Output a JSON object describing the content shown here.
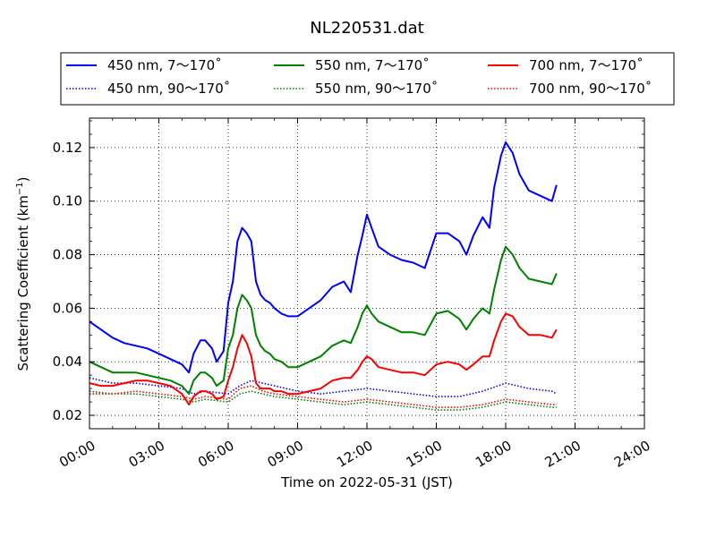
{
  "chart_data": {
    "type": "line",
    "title": "NL220531.dat",
    "xlabel": "Time on 2022-05-31 (JST)",
    "ylabel": "Scattering Coefficient (km",
    "ylabel_sup": "−1",
    "ylabel_close": ")",
    "xlim": [
      0,
      24
    ],
    "ylim": [
      0.015,
      0.131
    ],
    "x_unit": "hours",
    "x_ticks": [
      0,
      3,
      6,
      9,
      12,
      15,
      18,
      21,
      24
    ],
    "x_tick_labels": [
      "00:00",
      "03:00",
      "06:00",
      "09:00",
      "12:00",
      "15:00",
      "18:00",
      "21:00",
      "24:00"
    ],
    "y_ticks": [
      0.02,
      0.04,
      0.06,
      0.08,
      0.1,
      0.12
    ],
    "y_tick_labels": [
      "0.02",
      "0.04",
      "0.06",
      "0.08",
      "0.10",
      "0.12"
    ],
    "grid": true,
    "legend_placement": "top-outside",
    "series": [
      {
        "name": "450 nm, 7～170˚",
        "color": "#0000ff",
        "style": "solid",
        "x": [
          0,
          0.5,
          1,
          1.5,
          2,
          2.5,
          3,
          3.5,
          4,
          4.3,
          4.5,
          4.8,
          5,
          5.3,
          5.5,
          5.8,
          6,
          6.2,
          6.4,
          6.6,
          6.8,
          7,
          7.2,
          7.4,
          7.6,
          7.8,
          8,
          8.3,
          8.6,
          9,
          9.5,
          10,
          10.5,
          11,
          11.3,
          11.6,
          11.8,
          12,
          12.2,
          12.5,
          13,
          13.5,
          14,
          14.5,
          15,
          15.5,
          16,
          16.3,
          16.6,
          17,
          17.3,
          17.5,
          17.8,
          18,
          18.3,
          18.6,
          19,
          19.5,
          20,
          20.2
        ],
        "y": [
          0.055,
          0.052,
          0.049,
          0.047,
          0.046,
          0.045,
          0.043,
          0.041,
          0.039,
          0.036,
          0.043,
          0.048,
          0.048,
          0.045,
          0.04,
          0.044,
          0.062,
          0.07,
          0.085,
          0.09,
          0.088,
          0.085,
          0.07,
          0.065,
          0.063,
          0.062,
          0.06,
          0.058,
          0.057,
          0.057,
          0.06,
          0.063,
          0.068,
          0.07,
          0.066,
          0.08,
          0.087,
          0.095,
          0.09,
          0.083,
          0.08,
          0.078,
          0.077,
          0.075,
          0.088,
          0.088,
          0.085,
          0.08,
          0.087,
          0.094,
          0.09,
          0.105,
          0.117,
          0.122,
          0.118,
          0.11,
          0.104,
          0.102,
          0.1,
          0.106
        ]
      },
      {
        "name": "450 nm, 90～170˚",
        "color": "#0000ff",
        "style": "dotted",
        "x": [
          0,
          1,
          2,
          3,
          4,
          4.5,
          5,
          6,
          6.5,
          7,
          7.5,
          8,
          9,
          10,
          11,
          12,
          13,
          14,
          15,
          16,
          17,
          18,
          19,
          20,
          20.2
        ],
        "y": [
          0.034,
          0.032,
          0.032,
          0.031,
          0.03,
          0.028,
          0.029,
          0.028,
          0.031,
          0.033,
          0.032,
          0.031,
          0.029,
          0.028,
          0.029,
          0.03,
          0.029,
          0.028,
          0.027,
          0.027,
          0.029,
          0.032,
          0.03,
          0.029,
          0.028
        ]
      },
      {
        "name": "550 nm, 7～170˚",
        "color": "#008000",
        "style": "solid",
        "x": [
          0,
          0.5,
          1,
          1.5,
          2,
          2.5,
          3,
          3.5,
          4,
          4.3,
          4.5,
          4.8,
          5,
          5.3,
          5.5,
          5.8,
          6,
          6.2,
          6.4,
          6.6,
          6.8,
          7,
          7.2,
          7.4,
          7.6,
          7.8,
          8,
          8.3,
          8.6,
          9,
          9.5,
          10,
          10.5,
          11,
          11.3,
          11.6,
          11.8,
          12,
          12.2,
          12.5,
          13,
          13.5,
          14,
          14.5,
          15,
          15.5,
          16,
          16.3,
          16.6,
          17,
          17.3,
          17.5,
          17.8,
          18,
          18.3,
          18.6,
          19,
          19.5,
          20,
          20.2
        ],
        "y": [
          0.04,
          0.038,
          0.036,
          0.036,
          0.036,
          0.035,
          0.034,
          0.033,
          0.031,
          0.028,
          0.033,
          0.036,
          0.036,
          0.034,
          0.031,
          0.033,
          0.045,
          0.05,
          0.06,
          0.065,
          0.063,
          0.06,
          0.05,
          0.046,
          0.044,
          0.043,
          0.041,
          0.04,
          0.038,
          0.038,
          0.04,
          0.042,
          0.046,
          0.048,
          0.047,
          0.053,
          0.058,
          0.061,
          0.058,
          0.055,
          0.053,
          0.051,
          0.051,
          0.05,
          0.058,
          0.059,
          0.056,
          0.052,
          0.056,
          0.06,
          0.058,
          0.067,
          0.078,
          0.083,
          0.08,
          0.075,
          0.071,
          0.07,
          0.069,
          0.073
        ]
      },
      {
        "name": "550 nm, 90～170˚",
        "color": "#008000",
        "style": "dotted",
        "x": [
          0,
          1,
          2,
          3,
          4,
          4.5,
          5,
          6,
          6.5,
          7,
          7.5,
          8,
          9,
          10,
          11,
          12,
          13,
          14,
          15,
          16,
          17,
          18,
          19,
          20,
          20.2
        ],
        "y": [
          0.029,
          0.028,
          0.028,
          0.027,
          0.026,
          0.025,
          0.026,
          0.025,
          0.028,
          0.029,
          0.028,
          0.027,
          0.026,
          0.025,
          0.024,
          0.025,
          0.024,
          0.023,
          0.022,
          0.022,
          0.023,
          0.025,
          0.024,
          0.023,
          0.023
        ]
      },
      {
        "name": "700 nm, 7～170˚",
        "color": "#ff0000",
        "style": "solid",
        "x": [
          0,
          0.5,
          1,
          1.5,
          2,
          2.5,
          3,
          3.5,
          4,
          4.3,
          4.5,
          4.8,
          5,
          5.3,
          5.5,
          5.8,
          6,
          6.2,
          6.4,
          6.6,
          6.8,
          7,
          7.2,
          7.4,
          7.6,
          7.8,
          8,
          8.3,
          8.6,
          9,
          9.5,
          10,
          10.5,
          11,
          11.3,
          11.6,
          11.8,
          12,
          12.2,
          12.5,
          13,
          13.5,
          14,
          14.5,
          15,
          15.5,
          16,
          16.3,
          16.6,
          17,
          17.3,
          17.5,
          17.8,
          18,
          18.3,
          18.6,
          19,
          19.5,
          20,
          20.2
        ],
        "y": [
          0.032,
          0.031,
          0.031,
          0.032,
          0.033,
          0.033,
          0.032,
          0.031,
          0.028,
          0.024,
          0.027,
          0.029,
          0.029,
          0.028,
          0.026,
          0.027,
          0.033,
          0.038,
          0.045,
          0.05,
          0.047,
          0.042,
          0.032,
          0.03,
          0.03,
          0.03,
          0.029,
          0.029,
          0.028,
          0.028,
          0.029,
          0.03,
          0.033,
          0.034,
          0.034,
          0.037,
          0.04,
          0.042,
          0.041,
          0.038,
          0.037,
          0.036,
          0.036,
          0.035,
          0.039,
          0.04,
          0.039,
          0.037,
          0.039,
          0.042,
          0.042,
          0.048,
          0.055,
          0.058,
          0.057,
          0.053,
          0.05,
          0.05,
          0.049,
          0.052
        ]
      },
      {
        "name": "700 nm, 90～170˚",
        "color": "#ff0000",
        "style": "dotted",
        "x": [
          0,
          1,
          2,
          3,
          4,
          4.5,
          5,
          6,
          6.5,
          7,
          7.5,
          8,
          9,
          10,
          11,
          12,
          13,
          14,
          15,
          16,
          17,
          18,
          19,
          20,
          20.2
        ],
        "y": [
          0.028,
          0.028,
          0.029,
          0.028,
          0.027,
          0.026,
          0.027,
          0.026,
          0.03,
          0.031,
          0.029,
          0.028,
          0.027,
          0.026,
          0.025,
          0.026,
          0.025,
          0.024,
          0.023,
          0.023,
          0.024,
          0.026,
          0.025,
          0.024,
          0.024
        ]
      }
    ]
  }
}
